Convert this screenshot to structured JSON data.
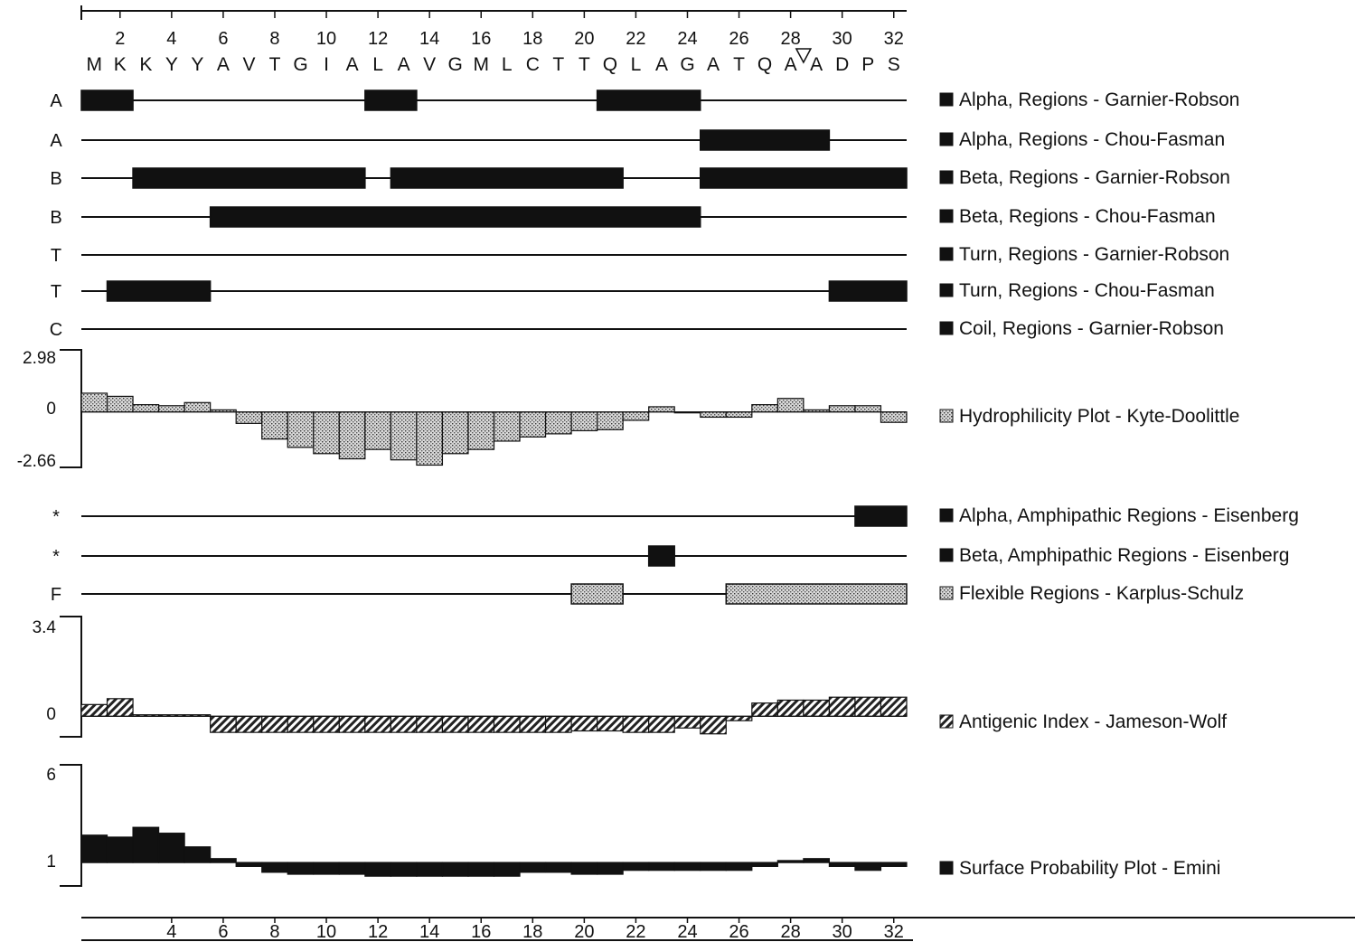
{
  "chart_data": {
    "type": "protein-structure-prediction",
    "sequence": [
      "M",
      "K",
      "K",
      "Y",
      "Y",
      "A",
      "V",
      "T",
      "G",
      "I",
      "A",
      "L",
      "A",
      "V",
      "G",
      "M",
      "L",
      "C",
      "T",
      "T",
      "Q",
      "L",
      "A",
      "G",
      "A",
      "T",
      "Q",
      "A",
      "A",
      "D",
      "P",
      "S"
    ],
    "top_ticks": [
      2,
      4,
      6,
      8,
      10,
      12,
      14,
      16,
      18,
      20,
      22,
      24,
      26,
      28,
      30,
      32
    ],
    "bottom_ticks": [
      4,
      6,
      8,
      10,
      12,
      14,
      16,
      18,
      20,
      22,
      24,
      26,
      28,
      30,
      32
    ],
    "cleavage_marker_after_residue": 28,
    "region_tracks": [
      {
        "letter": "A",
        "name": "Alpha, Regions - Garnier-Robson",
        "regions": [
          [
            1,
            2
          ],
          [
            12,
            13
          ],
          [
            21,
            24
          ]
        ],
        "fill": "solid"
      },
      {
        "letter": "A",
        "name": "Alpha, Regions - Chou-Fasman",
        "regions": [
          [
            25,
            29
          ]
        ],
        "fill": "solid"
      },
      {
        "letter": "B",
        "name": "Beta, Regions - Garnier-Robson",
        "regions": [
          [
            3,
            11
          ],
          [
            13,
            21
          ],
          [
            25,
            32
          ]
        ],
        "fill": "solid"
      },
      {
        "letter": "B",
        "name": "Beta, Regions - Chou-Fasman",
        "regions": [
          [
            6,
            24
          ]
        ],
        "fill": "solid"
      },
      {
        "letter": "T",
        "name": "Turn, Regions - Garnier-Robson",
        "regions": [],
        "fill": "solid"
      },
      {
        "letter": "T",
        "name": "Turn, Regions - Chou-Fasman",
        "regions": [
          [
            2,
            5
          ],
          [
            30,
            32
          ]
        ],
        "fill": "solid"
      },
      {
        "letter": "C",
        "name": "Coil, Regions - Garnier-Robson",
        "regions": [],
        "fill": "solid"
      }
    ],
    "hydrophilicity": {
      "name": "Hydrophilicity Plot - Kyte-Doolittle",
      "ymax_label": "2.98",
      "zero_label": "0",
      "ymin_label": "-2.66",
      "ylim": [
        -2.66,
        2.98
      ],
      "values": [
        0.9,
        0.75,
        0.35,
        0.3,
        0.45,
        0.1,
        -0.55,
        -1.3,
        -1.7,
        -2.0,
        -2.25,
        -1.8,
        -2.3,
        -2.55,
        -2.0,
        -1.8,
        -1.4,
        -1.2,
        -1.05,
        -0.9,
        -0.85,
        -0.4,
        0.25,
        0.0,
        -0.25,
        -0.25,
        0.35,
        0.65,
        0.1,
        0.3,
        0.3,
        -0.5
      ],
      "fill": "stipple"
    },
    "amphipathic_tracks": [
      {
        "letter": "*",
        "name": "Alpha, Amphipathic Regions - Eisenberg",
        "regions": [
          [
            31,
            32
          ]
        ],
        "fill": "solid"
      },
      {
        "letter": "*",
        "name": "Beta, Amphipathic Regions - Eisenberg",
        "regions": [
          [
            23,
            23
          ]
        ],
        "fill": "solid"
      },
      {
        "letter": "F",
        "name": "Flexible Regions - Karplus-Schulz",
        "regions": [
          [
            20,
            21
          ],
          [
            26,
            32
          ]
        ],
        "fill": "stipple"
      }
    ],
    "antigenic": {
      "name": "Antigenic Index - Jameson-Wolf",
      "ymax_label": "3.4",
      "zero_label": "0",
      "ylim": [
        -0.7,
        3.4
      ],
      "values": [
        0.4,
        0.6,
        0.05,
        0.05,
        0.05,
        -0.55,
        -0.55,
        -0.55,
        -0.55,
        -0.55,
        -0.55,
        -0.55,
        -0.55,
        -0.55,
        -0.55,
        -0.55,
        -0.55,
        -0.55,
        -0.55,
        -0.5,
        -0.5,
        -0.55,
        -0.55,
        -0.4,
        -0.6,
        -0.15,
        0.45,
        0.55,
        0.55,
        0.65,
        0.65,
        0.65
      ],
      "fill": "hatch"
    },
    "surface": {
      "name": "Surface Probability Plot - Emini",
      "ymax_label": "6",
      "baseline_label": "1",
      "ylim": [
        -0.2,
        6
      ],
      "values": [
        2.4,
        2.3,
        2.8,
        2.5,
        1.8,
        1.2,
        0.8,
        0.5,
        0.4,
        0.4,
        0.4,
        0.3,
        0.3,
        0.3,
        0.3,
        0.3,
        0.3,
        0.5,
        0.5,
        0.4,
        0.4,
        0.6,
        0.6,
        0.6,
        0.6,
        0.6,
        0.8,
        1.1,
        1.2,
        0.8,
        0.6,
        0.8
      ],
      "fill": "solid"
    }
  }
}
